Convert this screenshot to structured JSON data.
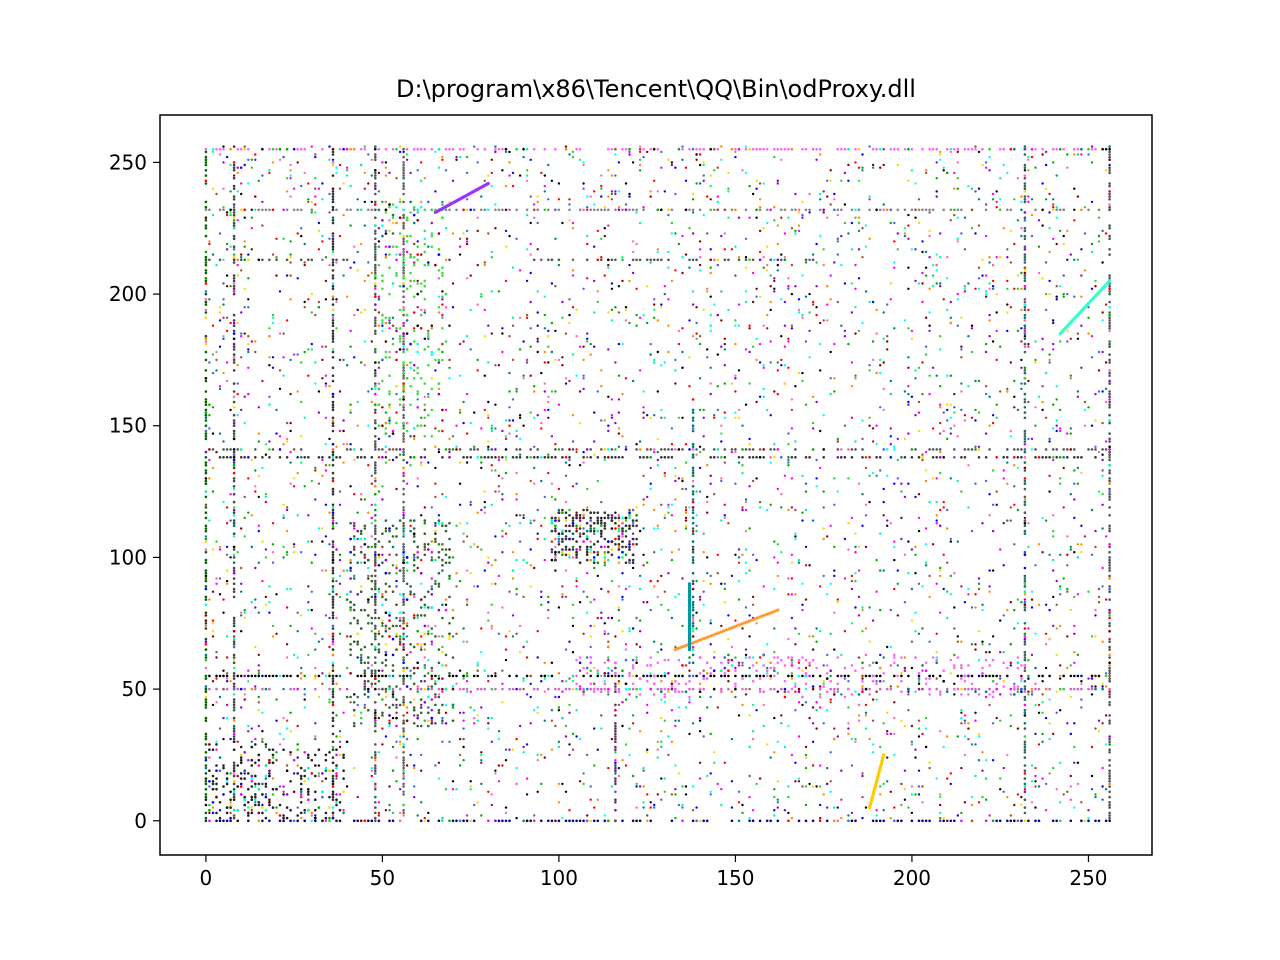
{
  "chart_data": {
    "type": "scatter",
    "title": "D:\\program\\x86\\Tencent\\QQ\\Bin\\odProxy.dll",
    "xlabel": "",
    "ylabel": "",
    "xlim": [
      -13,
      268
    ],
    "ylim": [
      -13,
      268
    ],
    "xticks": [
      0,
      50,
      100,
      150,
      200,
      250
    ],
    "yticks": [
      0,
      50,
      100,
      150,
      200,
      250
    ],
    "grid": false,
    "legend": "none",
    "point_palette": [
      "#000000",
      "#0000ff",
      "#ff00ff",
      "#00aa00",
      "#ff8c00",
      "#00ffff",
      "#ff0000",
      "#9400d3",
      "#32cd32",
      "#8b0000",
      "#008080",
      "#ffd700",
      "#ff69b4",
      "#00fa9a",
      "#4169e1",
      "#a0522d"
    ],
    "dense_rows": [
      {
        "y": 0,
        "x_from": 0,
        "x_to": 256,
        "color": "#00008b"
      },
      {
        "y": 50,
        "x_from": 0,
        "x_to": 256,
        "color": "#cc66cc"
      },
      {
        "y": 55,
        "x_from": 0,
        "x_to": 256,
        "color": "#000000"
      },
      {
        "y": 138,
        "x_from": 0,
        "x_to": 256,
        "color": "#333333"
      },
      {
        "y": 141,
        "x_from": 0,
        "x_to": 256,
        "color": "#555555"
      },
      {
        "y": 213,
        "x_from": 0,
        "x_to": 40,
        "color": "#555555"
      },
      {
        "y": 213,
        "x_from": 93,
        "x_to": 172,
        "color": "#555555"
      },
      {
        "y": 255,
        "x_from": 0,
        "x_to": 256,
        "color": "#ff66ff"
      },
      {
        "y": 232,
        "x_from": 0,
        "x_to": 256,
        "color": "#888888"
      }
    ],
    "dense_cols": [
      {
        "x": 0,
        "y_from": 0,
        "y_to": 256,
        "color": "#006400"
      },
      {
        "x": 8,
        "y_from": 0,
        "y_to": 256,
        "color": "#444444"
      },
      {
        "x": 36,
        "y_from": 0,
        "y_to": 256,
        "color": "#333333"
      },
      {
        "x": 48,
        "y_from": 0,
        "y_to": 256,
        "color": "#555555"
      },
      {
        "x": 56,
        "y_from": 0,
        "y_to": 256,
        "color": "#666666"
      },
      {
        "x": 116,
        "y_from": 0,
        "y_to": 60,
        "color": "#663366"
      },
      {
        "x": 138,
        "y_from": 60,
        "y_to": 160,
        "color": "#007777"
      },
      {
        "x": 232,
        "y_from": 0,
        "y_to": 256,
        "color": "#336666"
      },
      {
        "x": 256,
        "y_from": 0,
        "y_to": 256,
        "color": "#555555"
      }
    ],
    "clusters": [
      {
        "cx": 110,
        "cy": 108,
        "rx": 12,
        "ry": 10,
        "count": 260,
        "color": "#333333"
      },
      {
        "cx": 55,
        "cy": 75,
        "rx": 15,
        "ry": 40,
        "count": 420,
        "color": "#336633"
      },
      {
        "cx": 58,
        "cy": 190,
        "rx": 10,
        "ry": 45,
        "count": 260,
        "color": "#44dd44"
      },
      {
        "cx": 170,
        "cy": 55,
        "rx": 65,
        "ry": 8,
        "count": 300,
        "color": "#ff66ff"
      },
      {
        "cx": 20,
        "cy": 15,
        "rx": 20,
        "ry": 15,
        "count": 260,
        "color": "#222222"
      }
    ],
    "line_segments": [
      {
        "x1": 65,
        "y1": 231,
        "x2": 80,
        "y2": 242,
        "color": "#9933ff"
      },
      {
        "x1": 133,
        "y1": 65,
        "x2": 162,
        "y2": 80,
        "color": "#ff9933"
      },
      {
        "x1": 242,
        "y1": 185,
        "x2": 256,
        "y2": 205,
        "color": "#33ffcc"
      },
      {
        "x1": 137,
        "y1": 65,
        "x2": 137,
        "y2": 90,
        "color": "#009999"
      },
      {
        "x1": 188,
        "y1": 5,
        "x2": 192,
        "y2": 25,
        "color": "#ffcc00"
      }
    ],
    "random_point_count": 4200
  }
}
